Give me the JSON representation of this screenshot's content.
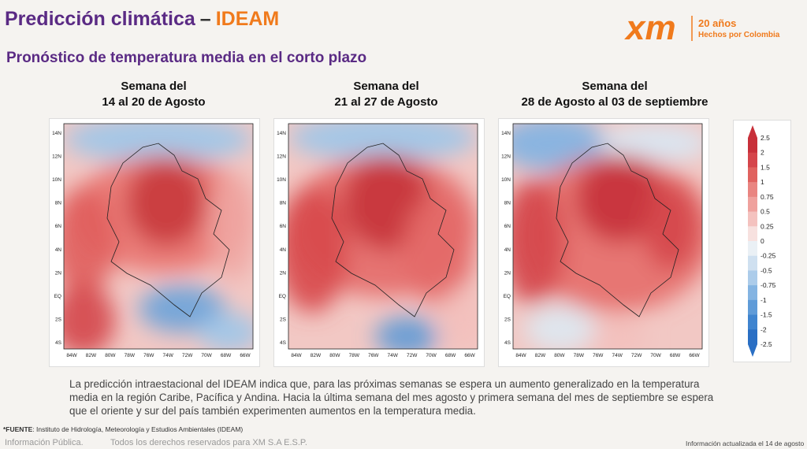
{
  "header": {
    "title": "Predicción climática",
    "dash": "–",
    "title_accent": "IDEAM",
    "subtitle": "Pronóstico de temperatura media en el corto plazo",
    "logo": {
      "brand": "xm",
      "years": "20 años",
      "tagline": "Hechos por Colombia"
    }
  },
  "maps": [
    {
      "title_line1": "Semana del",
      "title_line2": "14 al 20 de Agosto"
    },
    {
      "title_line1": "Semana del",
      "title_line2": "21 al 27 de Agosto"
    },
    {
      "title_line1": "Semana del",
      "title_line2": "28 de Agosto al 03 de septiembre"
    }
  ],
  "map_axes": {
    "lat_labels": [
      "14N",
      "12N",
      "10N",
      "8N",
      "6N",
      "4N",
      "2N",
      "EQ",
      "2S",
      "4S"
    ],
    "lon_labels": [
      "84W",
      "82W",
      "80W",
      "78W",
      "76W",
      "74W",
      "72W",
      "70W",
      "68W",
      "66W"
    ]
  },
  "colorbar": {
    "labels": [
      "2.5",
      "2",
      "1.5",
      "1",
      "0.75",
      "0.5",
      "0.25",
      "0",
      "-0.25",
      "-0.5",
      "-0.75",
      "-1",
      "-1.5",
      "-2",
      "-2.5"
    ]
  },
  "body_text": "La predicción intraestacional del IDEAM indica que, para las próximas semanas se espera un aumento generalizado en la temperatura media en la región Caribe, Pacífica y Andina. Hacia la última semana del mes agosto y primera semana del mes de septiembre se espera que el oriente y sur del país también experimenten aumentos en la temperatura media.",
  "footer": {
    "source_label": "*FUENTE",
    "source": ": Instituto de Hidrología, Meteorología y Estudios Ambientales (IDEAM)",
    "left": "Información Pública.",
    "rights": "Todos los derechos reservados para XM S.A E.S.P.",
    "update": "Información actualizada el 14 de agosto"
  }
}
